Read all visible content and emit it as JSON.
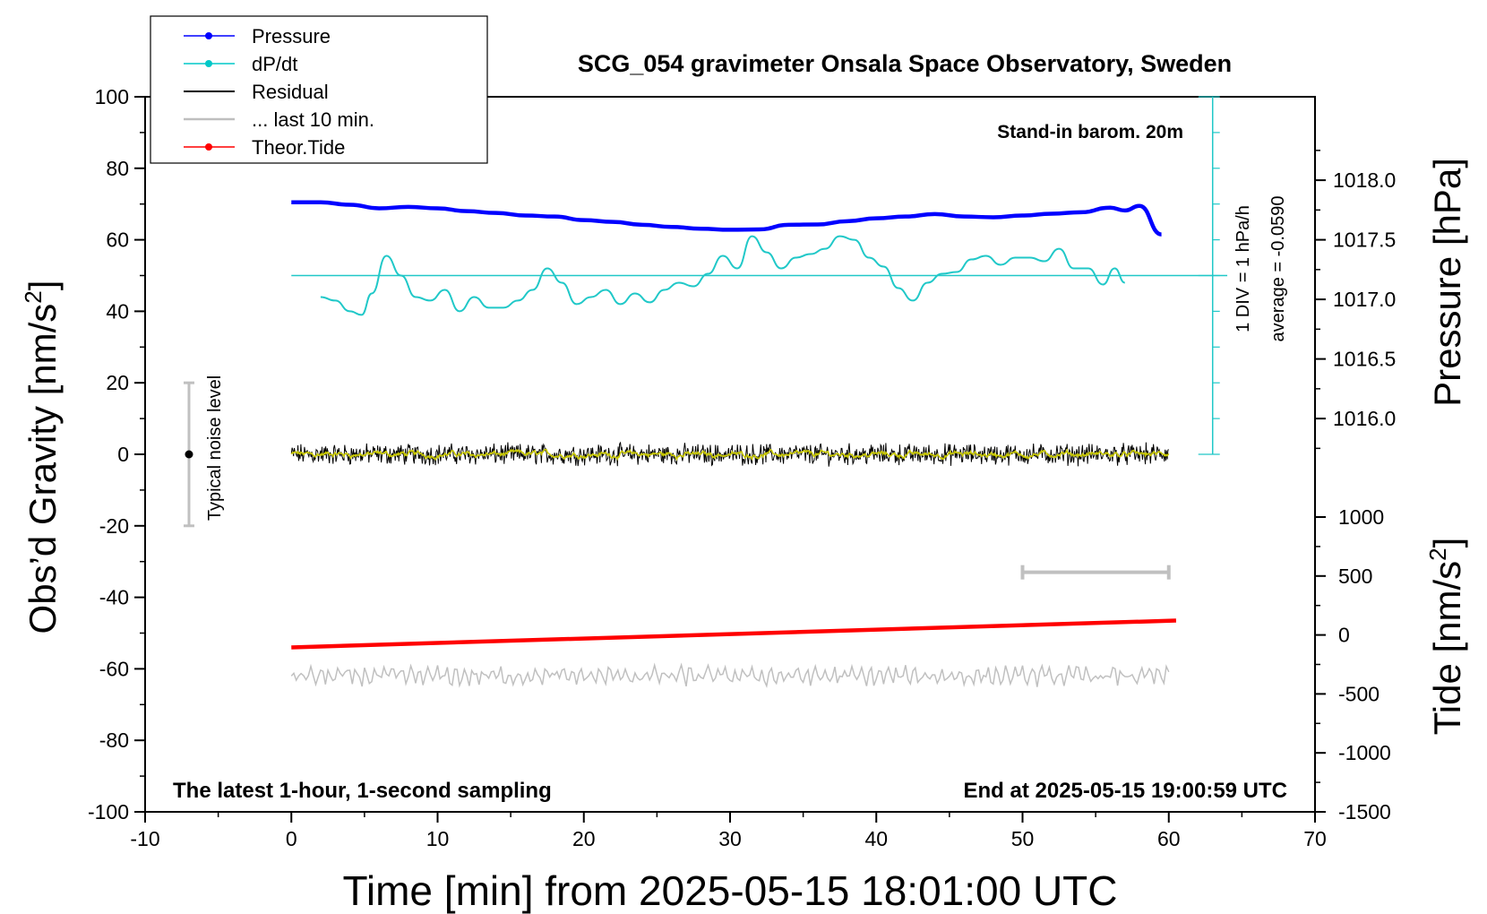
{
  "chart_data": {
    "type": "line",
    "title": "SCG_054 gravimeter Onsala Space Observatory, Sweden",
    "xlabel": "Time [min] from 2025-05-15 18:01:00 UTC",
    "ylabel_left_base": "Obs’d Gravity [nm/s",
    "ylabel_left_sup": "2",
    "ylabel_left_end": "]",
    "ylabel_right_top": "Pressure [hPa]",
    "ylabel_right_bottom_base": "Tide [nm/s",
    "ylabel_right_bottom_sup": "2",
    "ylabel_right_bottom_end": "]",
    "xlim": [
      -10,
      70
    ],
    "ylim": [
      -100,
      100
    ],
    "x_ticks": [
      "-10",
      "0",
      "10",
      "20",
      "30",
      "40",
      "50",
      "60",
      "70"
    ],
    "y_ticks": [
      "100",
      "80",
      "60",
      "40",
      "20",
      "0",
      "-20",
      "-40",
      "-60",
      "-80",
      "-100"
    ],
    "pressure_axis": {
      "ticks": [
        "1018.0",
        "1017.5",
        "1017.0",
        "1016.5",
        "1016.0"
      ],
      "range_hpa": [
        1015.7,
        1018.7
      ]
    },
    "tide_axis": {
      "ticks": [
        "1000",
        "500",
        "0",
        "-500",
        "-1000",
        "-1500"
      ],
      "range": [
        -1500,
        1000
      ]
    },
    "legend": [
      {
        "label": "Pressure",
        "color": "#0000ff",
        "marker": true
      },
      {
        "label": "dP/dt",
        "color": "#00c8c8",
        "marker": true
      },
      {
        "label": "Residual",
        "color": "#000000",
        "marker": false
      },
      {
        "label": "... last 10 min.",
        "color": "#bfbfbf",
        "marker": false
      },
      {
        "label": "Theor.Tide",
        "color": "#ff0000",
        "marker": true
      }
    ],
    "annotations": {
      "barometer": "Stand-in barom. 20m",
      "latest": "The latest 1-hour, 1-second sampling",
      "end_time": "End at 2025-05-15 19:00:59 UTC",
      "noise": "Typical noise level",
      "div": "1 DIV = 1 hPa/h",
      "average": "average = -0.0590"
    },
    "colors": {
      "pressure": "#0000ff",
      "dpdt": "#20c8c8",
      "residual": "#000000",
      "smooth": "#c8c800",
      "last10": "#c0c0c0",
      "tide": "#ff0000",
      "noise": "#c0c0c0"
    },
    "noise_bar": {
      "x": -7,
      "center": 0,
      "half_range": 20
    },
    "last10_bar": {
      "x_start": 50,
      "x_end": 60,
      "y": -33
    },
    "dpdt_zero_level": 50,
    "dpdt_div_scale": {
      "x": 63,
      "y_top": 100,
      "y_bottom": 0
    },
    "series": [
      {
        "name": "Pressure",
        "x": [
          0,
          2,
          4,
          6,
          8,
          10,
          12,
          14,
          16,
          18,
          20,
          22,
          24,
          26,
          28,
          30,
          32,
          34,
          36,
          38,
          40,
          42,
          44,
          46,
          48,
          50,
          52,
          54,
          56,
          57,
          58,
          59.5
        ],
        "values": [
          70.5,
          70.5,
          69.8,
          68.8,
          69.2,
          68.8,
          68.0,
          67.5,
          66.8,
          66.5,
          65.5,
          65.0,
          64.2,
          63.6,
          63.1,
          62.8,
          62.9,
          64.2,
          64.3,
          65.2,
          66.0,
          66.5,
          67.2,
          66.5,
          66.3,
          66.8,
          67.3,
          67.7,
          69.0,
          68.2,
          69.5,
          61.5
        ]
      },
      {
        "name": "dP/dt",
        "x": [
          2,
          3,
          4,
          4.8,
          5.5,
          6.5,
          7.5,
          8.5,
          9.5,
          10.5,
          11.5,
          12.5,
          13.5,
          14.5,
          15.5,
          16.5,
          17.5,
          18.5,
          19.5,
          20.5,
          21.5,
          22.5,
          23.5,
          24.5,
          25.5,
          26.5,
          27.5,
          28.5,
          29.5,
          30.5,
          31.5,
          32.5,
          33.5,
          34.5,
          35.5,
          36.5,
          37.5,
          38.5,
          39.5,
          40.5,
          41.5,
          42.5,
          43.5,
          44.5,
          45.5,
          46.5,
          47.5,
          48.5,
          49.5,
          50.5,
          51.5,
          52.5,
          53.5,
          54.5,
          55.5,
          56.3,
          57
        ],
        "values": [
          44,
          43,
          40,
          39,
          45,
          55.5,
          50,
          44,
          43,
          46,
          40,
          44,
          41,
          41,
          43,
          46,
          52,
          48,
          42,
          44,
          46,
          42,
          45,
          42.5,
          46,
          48,
          47,
          50.5,
          55.5,
          52,
          61,
          56.5,
          52,
          55,
          56,
          57.5,
          61,
          60,
          55,
          52.5,
          46.5,
          43,
          48,
          50.5,
          51,
          54.5,
          55.5,
          53,
          55,
          55,
          54,
          57.5,
          52,
          52,
          47.5,
          52,
          48
        ]
      },
      {
        "name": "Theor.Tide",
        "x": [
          0,
          60.5
        ],
        "values": [
          -54,
          -46.5
        ]
      }
    ]
  }
}
